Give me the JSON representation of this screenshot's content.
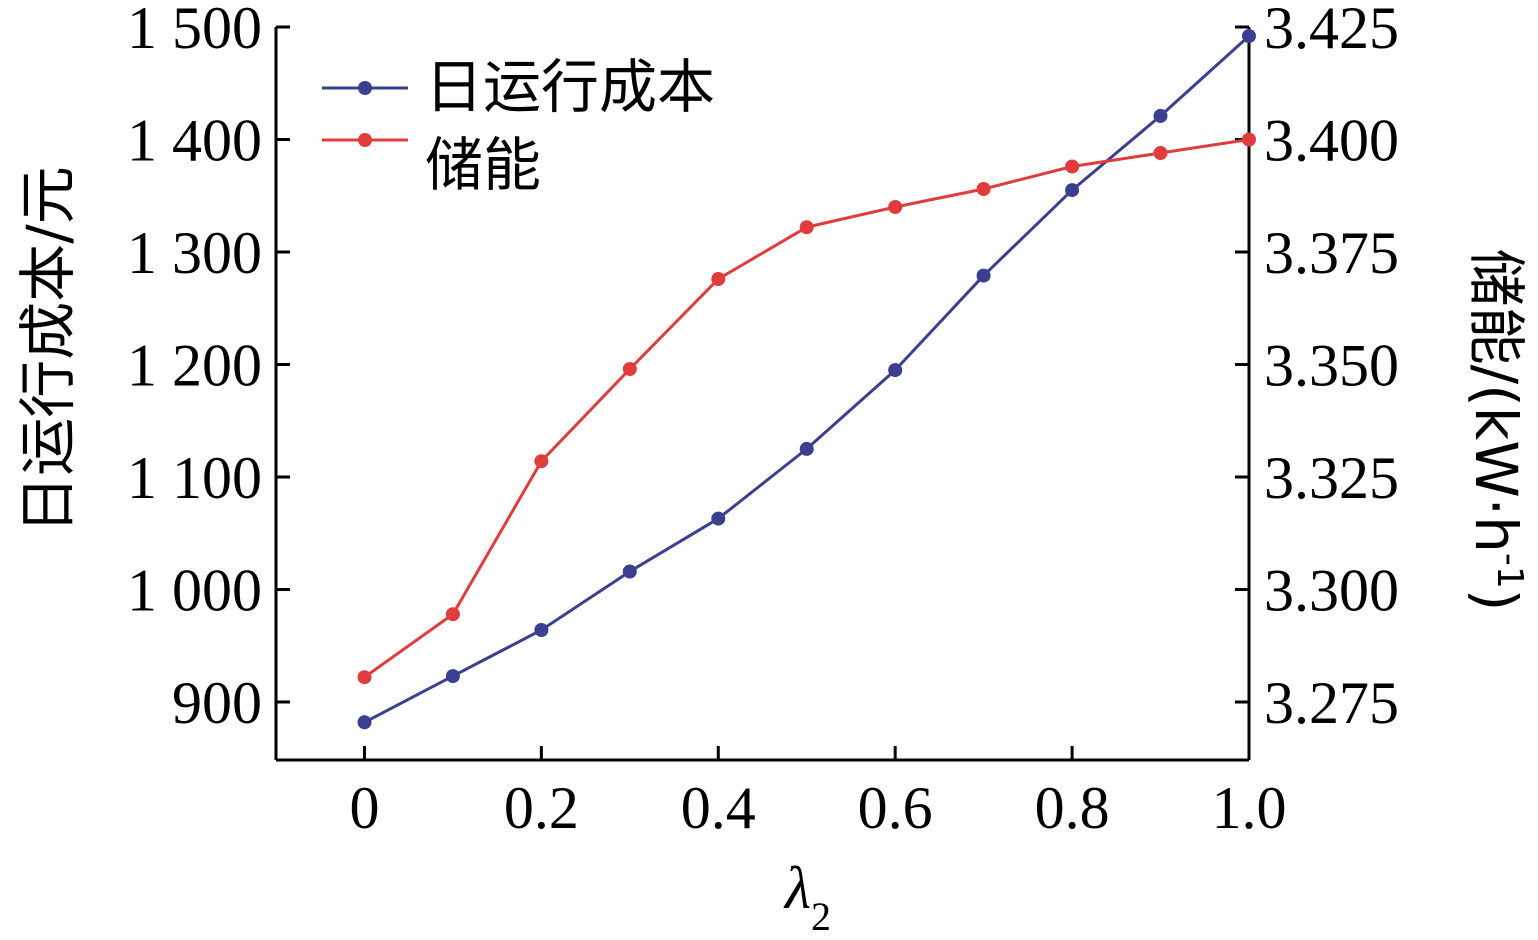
{
  "chart_data": {
    "type": "line",
    "x": [
      0,
      0.1,
      0.2,
      0.3,
      0.4,
      0.5,
      0.6,
      0.7,
      0.8,
      0.9,
      1.0
    ],
    "xlabel": "λ",
    "xlabel_subscript": "2",
    "xlim": [
      -0.1,
      1.0
    ],
    "x_ticks": [
      {
        "value": 0,
        "label": "0"
      },
      {
        "value": 0.2,
        "label": "0.2"
      },
      {
        "value": 0.4,
        "label": "0.4"
      },
      {
        "value": 0.6,
        "label": "0.6"
      },
      {
        "value": 0.8,
        "label": "0.8"
      },
      {
        "value": 1.0,
        "label": "1.0"
      }
    ],
    "ylabel_left": "日运行成本/元",
    "ylim_left": [
      850,
      1500
    ],
    "y_ticks_left": [
      {
        "value": 900,
        "label": "900"
      },
      {
        "value": 1000,
        "label": "1 000"
      },
      {
        "value": 1100,
        "label": "1 100"
      },
      {
        "value": 1200,
        "label": "1 200"
      },
      {
        "value": 1300,
        "label": "1 300"
      },
      {
        "value": 1400,
        "label": "1 400"
      },
      {
        "value": 1500,
        "label": "1 500"
      }
    ],
    "ylabel_right_main": "储能/(kW·h",
    "ylabel_right_sup": "-1",
    "ylabel_right_end": ")",
    "ylim_right": [
      3.2637,
      3.4
    ],
    "y_ticks_right": [
      {
        "value": 3.275,
        "label": "3.275"
      },
      {
        "value": 3.3,
        "label": "3.300"
      },
      {
        "value": 3.325,
        "label": "3.325"
      },
      {
        "value": 3.35,
        "label": "3.350"
      },
      {
        "value": 3.375,
        "label": "3.375"
      },
      {
        "value": 3.4,
        "label": "3.400"
      },
      {
        "value": 3.425,
        "label": "3.425"
      }
    ],
    "series": [
      {
        "name": "日运行成本",
        "axis": "left",
        "color": "#3a3f8f",
        "values": [
          882,
          923,
          964,
          1016,
          1063,
          1125,
          1195,
          1279,
          1355,
          1421,
          1492
        ]
      },
      {
        "name": "储能",
        "axis": "right",
        "color": "#e03c3c",
        "values": [
          3.2805,
          3.2945,
          3.3285,
          3.349,
          3.369,
          3.3805,
          3.385,
          3.389,
          3.394,
          3.397,
          3.4
        ]
      }
    ],
    "legend_position": "top-left",
    "grid": false
  }
}
